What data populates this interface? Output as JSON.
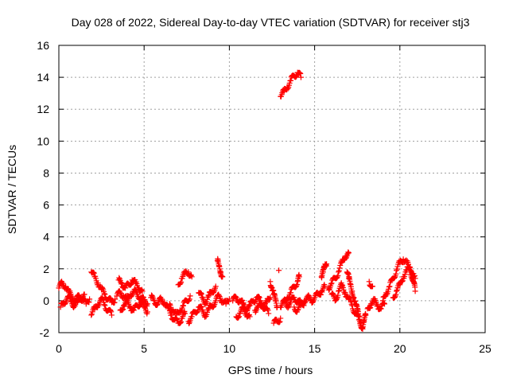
{
  "chart_data": {
    "type": "scatter",
    "title": "Day 028 of 2022, Sidereal Day-to-day VTEC variation (SDTVAR) for receiver stj3",
    "xlabel": "GPS time / hours",
    "ylabel": "SDTVAR / TECUs",
    "xlim": [
      0,
      25
    ],
    "ylim": [
      -2,
      16
    ],
    "xticks": [
      "0",
      "5",
      "10",
      "15",
      "20",
      "25"
    ],
    "yticks": [
      "-2",
      "0",
      "2",
      "4",
      "6",
      "8",
      "10",
      "12",
      "14",
      "16"
    ],
    "grid": true,
    "marker": "+",
    "series": [
      {
        "name": "SDTVAR",
        "color": "#ff0000",
        "segments": [
          [
            [
              0.0,
              0.8
            ],
            [
              0.2,
              1.1
            ],
            [
              0.4,
              0.9
            ],
            [
              0.6,
              0.5
            ],
            [
              0.8,
              0.2
            ],
            [
              1.0,
              0.0
            ],
            [
              1.2,
              0.3
            ],
            [
              1.4,
              0.1
            ],
            [
              1.6,
              -0.2
            ],
            [
              1.8,
              0.1
            ]
          ],
          [
            [
              0.1,
              -0.4
            ],
            [
              0.3,
              -0.1
            ],
            [
              0.5,
              0.2
            ],
            [
              0.7,
              0.0
            ],
            [
              0.9,
              -0.3
            ],
            [
              1.1,
              -0.1
            ],
            [
              1.3,
              0.2
            ],
            [
              1.5,
              0.4
            ]
          ],
          [
            [
              1.9,
              1.8
            ],
            [
              2.1,
              1.5
            ],
            [
              2.3,
              1.1
            ],
            [
              2.5,
              0.7
            ],
            [
              2.7,
              0.4
            ],
            [
              2.9,
              0.1
            ],
            [
              3.1,
              -0.1
            ],
            [
              3.3,
              0.1
            ]
          ],
          [
            [
              1.9,
              -0.9
            ],
            [
              2.1,
              -0.5
            ],
            [
              2.3,
              -0.2
            ],
            [
              2.5,
              0.1
            ],
            [
              2.7,
              -0.3
            ],
            [
              2.9,
              -0.6
            ],
            [
              3.1,
              -0.9
            ]
          ],
          [
            [
              3.4,
              0.3
            ],
            [
              3.6,
              0.5
            ],
            [
              3.8,
              0.3
            ],
            [
              4.0,
              0.1
            ],
            [
              4.2,
              0.4
            ],
            [
              4.4,
              0.6
            ],
            [
              4.6,
              0.4
            ],
            [
              4.8,
              0.2
            ],
            [
              5.0,
              0.0
            ],
            [
              5.2,
              -0.2
            ]
          ],
          [
            [
              3.5,
              1.3
            ],
            [
              3.7,
              1.1
            ],
            [
              3.9,
              0.8
            ],
            [
              4.1,
              1.0
            ],
            [
              4.3,
              1.3
            ],
            [
              4.5,
              1.1
            ],
            [
              4.7,
              0.8
            ],
            [
              4.9,
              0.6
            ]
          ],
          [
            [
              3.6,
              -0.6
            ],
            [
              3.8,
              -0.3
            ],
            [
              4.0,
              -0.1
            ],
            [
              4.2,
              -0.4
            ],
            [
              4.4,
              -0.6
            ],
            [
              4.6,
              -0.3
            ],
            [
              4.8,
              -0.1
            ],
            [
              5.0,
              -0.4
            ],
            [
              5.2,
              -0.7
            ]
          ],
          [
            [
              5.4,
              0.2
            ],
            [
              5.6,
              0.0
            ],
            [
              5.8,
              -0.2
            ],
            [
              6.0,
              0.1
            ],
            [
              6.2,
              -0.1
            ],
            [
              6.4,
              -0.5
            ],
            [
              6.6,
              -0.9
            ],
            [
              6.8,
              -1.2
            ],
            [
              7.0,
              -1.4
            ],
            [
              7.2,
              -1.1
            ],
            [
              7.4,
              -0.8
            ]
          ],
          [
            [
              6.5,
              -0.2
            ],
            [
              6.7,
              -0.6
            ],
            [
              6.9,
              -0.9
            ],
            [
              7.1,
              -0.6
            ],
            [
              7.3,
              -0.3
            ],
            [
              7.5,
              0.0
            ],
            [
              7.7,
              0.3
            ]
          ],
          [
            [
              7.0,
              1.0
            ],
            [
              7.2,
              1.4
            ],
            [
              7.4,
              1.7
            ],
            [
              7.6,
              1.8
            ],
            [
              7.8,
              1.5
            ]
          ],
          [
            [
              7.6,
              -1.3
            ],
            [
              7.8,
              -1.0
            ],
            [
              8.0,
              -0.7
            ],
            [
              8.2,
              -0.4
            ],
            [
              8.4,
              -0.6
            ],
            [
              8.6,
              -0.9
            ],
            [
              8.8,
              -0.5
            ],
            [
              9.0,
              -0.3
            ],
            [
              9.2,
              0.0
            ],
            [
              9.4,
              0.3
            ],
            [
              9.6,
              0.0
            ],
            [
              9.8,
              -0.2
            ],
            [
              10.0,
              0.1
            ]
          ],
          [
            [
              8.2,
              0.5
            ],
            [
              8.4,
              0.2
            ],
            [
              8.6,
              -0.1
            ],
            [
              8.8,
              0.3
            ],
            [
              9.0,
              0.6
            ],
            [
              9.2,
              0.9
            ]
          ],
          [
            [
              9.3,
              2.5
            ],
            [
              9.4,
              2.2
            ],
            [
              9.5,
              1.8
            ],
            [
              9.6,
              1.5
            ]
          ],
          [
            [
              10.2,
              0.0
            ],
            [
              10.4,
              0.2
            ],
            [
              10.6,
              0.0
            ],
            [
              10.8,
              -0.2
            ],
            [
              11.0,
              -0.5
            ],
            [
              11.2,
              -0.3
            ],
            [
              11.4,
              0.0
            ],
            [
              11.6,
              0.2
            ],
            [
              11.8,
              0.0
            ],
            [
              12.0,
              -0.3
            ],
            [
              12.2,
              -0.1
            ],
            [
              12.4,
              0.2
            ]
          ],
          [
            [
              10.4,
              -1.0
            ],
            [
              10.6,
              -0.8
            ],
            [
              10.8,
              -0.5
            ],
            [
              11.0,
              -0.8
            ],
            [
              11.2,
              -1.0
            ]
          ],
          [
            [
              11.5,
              -0.6
            ],
            [
              11.7,
              -0.4
            ],
            [
              11.9,
              -0.2
            ],
            [
              12.1,
              -0.5
            ],
            [
              12.3,
              -0.8
            ]
          ],
          [
            [
              12.4,
              1.2
            ],
            [
              12.5,
              0.8
            ],
            [
              12.6,
              0.4
            ],
            [
              12.7,
              0.0
            ],
            [
              12.8,
              -0.4
            ]
          ],
          [
            [
              12.6,
              -1.4
            ],
            [
              12.8,
              -1.3
            ],
            [
              13.0,
              -1.1
            ]
          ],
          [
            [
              12.9,
              1.9
            ]
          ],
          [
            [
              13.0,
              -0.4
            ],
            [
              13.2,
              -0.1
            ],
            [
              13.4,
              0.2
            ],
            [
              13.6,
              0.5
            ],
            [
              13.8,
              0.9
            ],
            [
              14.0,
              1.2
            ],
            [
              14.1,
              1.5
            ]
          ],
          [
            [
              13.2,
              0.0
            ],
            [
              13.4,
              -0.3
            ],
            [
              13.6,
              -0.1
            ],
            [
              13.8,
              0.2
            ],
            [
              14.0,
              0.0
            ],
            [
              14.2,
              -0.2
            ],
            [
              14.4,
              0.0
            ],
            [
              14.6,
              0.2
            ],
            [
              14.8,
              0.0
            ],
            [
              15.0,
              0.2
            ],
            [
              15.2,
              0.4
            ],
            [
              15.4,
              0.6
            ],
            [
              15.6,
              0.9
            ]
          ],
          [
            [
              13.8,
              -0.4
            ],
            [
              14.0,
              -0.6
            ],
            [
              14.2,
              -0.3
            ],
            [
              14.4,
              -0.1
            ]
          ],
          [
            [
              13.0,
              12.8
            ],
            [
              13.2,
              13.1
            ],
            [
              13.4,
              13.4
            ],
            [
              13.6,
              13.8
            ],
            [
              13.8,
              14.1
            ],
            [
              14.0,
              14.3
            ],
            [
              14.2,
              14.0
            ]
          ],
          [
            [
              15.4,
              1.5
            ],
            [
              15.5,
              1.8
            ],
            [
              15.6,
              2.1
            ],
            [
              15.7,
              2.3
            ]
          ],
          [
            [
              15.8,
              0.8
            ],
            [
              16.0,
              1.1
            ],
            [
              16.2,
              1.4
            ],
            [
              16.4,
              1.8
            ],
            [
              16.6,
              2.4
            ],
            [
              16.8,
              2.8
            ],
            [
              17.0,
              3.0
            ]
          ],
          [
            [
              16.0,
              0.4
            ],
            [
              16.2,
              0.0
            ],
            [
              16.4,
              0.6
            ],
            [
              16.6,
              1.0
            ]
          ],
          [
            [
              16.9,
              1.8
            ],
            [
              17.0,
              1.4
            ],
            [
              17.1,
              1.0
            ],
            [
              17.2,
              0.6
            ],
            [
              17.3,
              0.2
            ],
            [
              17.4,
              -0.2
            ],
            [
              17.5,
              -0.6
            ],
            [
              17.6,
              -1.0
            ],
            [
              17.7,
              -1.4
            ],
            [
              17.8,
              -1.7
            ],
            [
              17.9,
              -1.3
            ],
            [
              18.0,
              -0.9
            ]
          ],
          [
            [
              16.6,
              0.9
            ],
            [
              16.8,
              0.5
            ],
            [
              17.0,
              0.1
            ],
            [
              17.2,
              -0.3
            ],
            [
              17.4,
              -0.8
            ],
            [
              17.6,
              -1.2
            ]
          ],
          [
            [
              18.1,
              -0.5
            ],
            [
              18.3,
              -0.2
            ],
            [
              18.5,
              0.0
            ],
            [
              18.7,
              -0.3
            ],
            [
              18.9,
              -0.5
            ],
            [
              19.1,
              -0.2
            ]
          ],
          [
            [
              18.2,
              1.2
            ],
            [
              18.4,
              0.9
            ]
          ],
          [
            [
              19.0,
              0.0
            ],
            [
              19.2,
              0.5
            ],
            [
              19.4,
              0.9
            ],
            [
              19.6,
              1.4
            ],
            [
              19.8,
              1.9
            ],
            [
              20.0,
              2.4
            ],
            [
              20.2,
              2.6
            ],
            [
              20.4,
              2.4
            ],
            [
              20.6,
              1.9
            ],
            [
              20.8,
              1.2
            ],
            [
              20.9,
              0.6
            ]
          ],
          [
            [
              19.6,
              0.2
            ],
            [
              19.8,
              0.6
            ],
            [
              20.0,
              1.0
            ],
            [
              20.2,
              1.5
            ],
            [
              20.4,
              1.9
            ],
            [
              20.6,
              2.1
            ],
            [
              20.8,
              1.7
            ]
          ],
          [
            [
              20.7,
              1.6
            ],
            [
              20.9,
              1.4
            ]
          ]
        ]
      }
    ]
  }
}
